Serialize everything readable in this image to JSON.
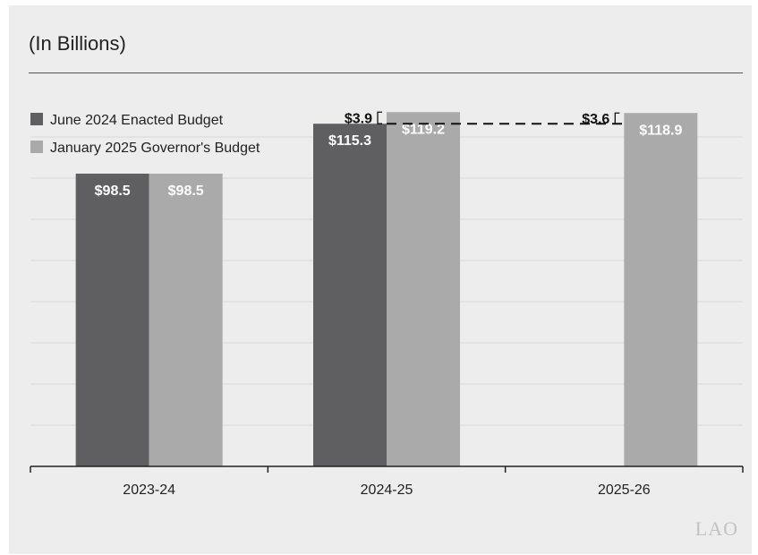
{
  "subtitle": "(In Billions)",
  "watermark": "LAO",
  "colors": {
    "enacted": "#5f5f61",
    "governor": "#a9aaa9",
    "grid": "#d7d7d7",
    "axis": "#222222",
    "bar_label": "#ffffff",
    "annotation": "#111111"
  },
  "chart_data": {
    "type": "bar",
    "subtitle": "(In Billions)",
    "categories": [
      "2023-24",
      "2024-25",
      "2025-26"
    ],
    "series": [
      {
        "name": "June 2024 Enacted Budget",
        "values": [
          98.5,
          115.3,
          null
        ],
        "labels": [
          "$98.5",
          "$115.3",
          ""
        ]
      },
      {
        "name": "January 2025 Governor's Budget",
        "values": [
          98.5,
          119.2,
          118.9
        ],
        "labels": [
          "$98.5",
          "$119.2",
          "$118.9"
        ]
      }
    ],
    "ylim": [
      0,
      125
    ],
    "grid": true,
    "legend": "top-left",
    "annotations": [
      {
        "text": "$3.9",
        "category": "2024-25",
        "note": "difference between $119.2 and $115.3"
      },
      {
        "text": "$3.6",
        "category": "2025-26",
        "note": "difference between $118.9 and $115.3"
      }
    ],
    "reference_line": {
      "value": 115.3,
      "style": "dashed",
      "from": "2024-25",
      "to": "2025-26"
    }
  }
}
